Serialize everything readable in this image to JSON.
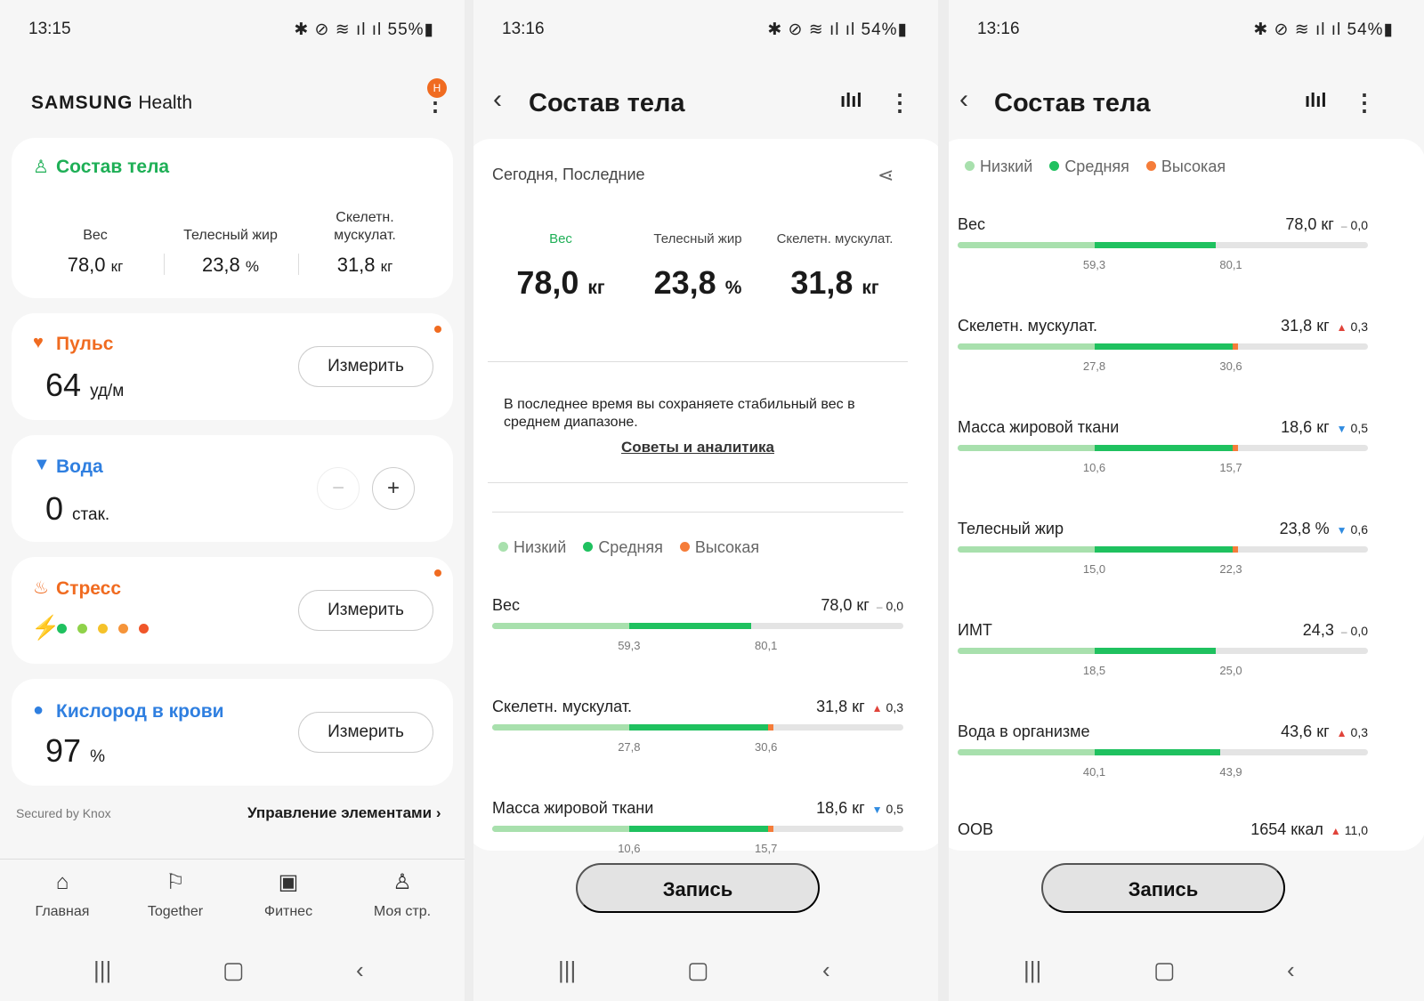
{
  "colors": {
    "low": "#a8e0ad",
    "mid": "#1fc15f",
    "high": "#f57c39",
    "accent": "#1eaf56"
  },
  "p1": {
    "status": {
      "time": "13:15",
      "icons": "✱ ⊘ ≋ ıl ıl 55%▮"
    },
    "brand": "SAMSUNG",
    "brand_app": "Health",
    "notif_badge": "H",
    "body": {
      "title": "Состав тела",
      "weight_label": "Вес",
      "weight_val": "78,0",
      "weight_unit": "кг",
      "fat_label": "Телесный жир",
      "fat_val": "23,8",
      "fat_unit": "%",
      "muscle_label": "Скелетн. мускулат.",
      "muscle_val": "31,8",
      "muscle_unit": "кг"
    },
    "pulse": {
      "title": "Пульс",
      "val": "64",
      "unit": "уд/м",
      "btn": "Измерить"
    },
    "water": {
      "title": "Вода",
      "val": "0",
      "unit": "стак.",
      "minus": "−",
      "plus": "+"
    },
    "stress": {
      "title": "Стресс",
      "btn": "Измерить"
    },
    "oxygen": {
      "title": "Кислород в крови",
      "val": "97",
      "unit": "%",
      "btn": "Измерить"
    },
    "knox": "Secured by Knox",
    "manage": "Управление элементами",
    "tabs": [
      "Главная",
      "Together",
      "Фитнес",
      "Моя стр."
    ]
  },
  "p2": {
    "status": {
      "time": "13:16",
      "icons": "✱ ⊘ ≋ ıl ıl 54%▮"
    },
    "title": "Состав тела",
    "subtitle": "Сегодня, Последние",
    "m1_label": "Вес",
    "m1_val": "78,0",
    "m1_unit": "кг",
    "m2_label": "Телесный жир",
    "m2_val": "23,8",
    "m2_unit": "%",
    "m3_label": "Скелетн. мускулат.",
    "m3_val": "31,8",
    "m3_unit": "кг",
    "note": "В последнее время вы сохраняете стабильный вес в среднем диапазоне.",
    "link": "Советы и аналитика",
    "legend": [
      "Низкий",
      "Средняя",
      "Высокая"
    ],
    "rows": [
      {
        "label": "Вес",
        "value": "78,0 кг",
        "trend": "–",
        "delta": "0,0",
        "low": "59,3",
        "high": "80,1",
        "fill": 0.63,
        "over": 0
      },
      {
        "label": "Скелетн. мускулат.",
        "value": "31,8 кг",
        "trend": "▲",
        "delta": "0,3",
        "low": "27,8",
        "high": "30,6",
        "fill": 0.67,
        "over": 1
      },
      {
        "label": "Массa жировой ткани",
        "value": "18,6 кг",
        "trend": "▼",
        "delta": "0,5",
        "low": "10,6",
        "high": "15,7",
        "fill": 0.67,
        "over": 1
      }
    ],
    "record": "Запись"
  },
  "p3": {
    "status": {
      "time": "13:16",
      "icons": "✱ ⊘ ≋ ıl ıl 54%▮"
    },
    "title": "Состав тела",
    "legend": [
      "Низкий",
      "Средняя",
      "Высокая"
    ],
    "rows": [
      {
        "label": "Вес",
        "value": "78,0 кг",
        "trend": "–",
        "delta": "0,0",
        "low": "59,3",
        "high": "80,1",
        "fill": 0.63,
        "over": 0
      },
      {
        "label": "Скелетн. мускулат.",
        "value": "31,8 кг",
        "trend": "▲",
        "delta": "0,3",
        "low": "27,8",
        "high": "30,6",
        "fill": 0.67,
        "over": 1
      },
      {
        "label": "Масса жировой ткани",
        "value": "18,6 кг",
        "trend": "▼",
        "delta": "0,5",
        "low": "10,6",
        "high": "15,7",
        "fill": 0.67,
        "over": 1
      },
      {
        "label": "Телесный жир",
        "value": "23,8 %",
        "trend": "▼",
        "delta": "0,6",
        "low": "15,0",
        "high": "22,3",
        "fill": 0.67,
        "over": 1
      },
      {
        "label": "ИМТ",
        "value": "24,3",
        "trend": "–",
        "delta": "0,0",
        "low": "18,5",
        "high": "25,0",
        "fill": 0.63,
        "over": 0
      },
      {
        "label": "Вода в организме",
        "value": "43,6 кг",
        "trend": "▲",
        "delta": "0,3",
        "low": "40,1",
        "high": "43,9",
        "fill": 0.64,
        "over": 0
      }
    ],
    "last_row": {
      "label": "ООВ",
      "value": "1654 ккал",
      "trend": "▲",
      "delta": "11,0"
    },
    "record": "Запись"
  }
}
